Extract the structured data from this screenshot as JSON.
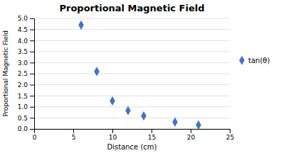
{
  "chart_data": {
    "type": "scatter",
    "title": "Proportional Magnetic Field",
    "xlabel": "Distance (cm)",
    "ylabel": "Proportional Magnetic Field",
    "x": [
      6,
      8,
      10,
      12,
      14,
      18,
      21
    ],
    "series": [
      {
        "name": "tan(θ)",
        "color": "#4472C4",
        "marker": "diamond",
        "values": [
          4.7,
          2.6,
          1.27,
          0.83,
          0.59,
          0.31,
          0.18
        ]
      }
    ],
    "xlim": [
      0,
      25
    ],
    "ylim": [
      0,
      5
    ],
    "xticks": [
      0,
      5,
      10,
      15,
      20,
      25
    ],
    "yticks": [
      {
        "value": 0,
        "label": "0.0"
      },
      0.5,
      {
        "value": 1.0,
        "label": "1.0"
      },
      1.5,
      {
        "value": 2.0,
        "label": "2.0"
      },
      2.5,
      {
        "value": 3.0,
        "label": "3.0"
      },
      3.5,
      {
        "value": 4.0,
        "label": "4.0"
      },
      4.5,
      {
        "value": 5.0,
        "label": "5.0"
      }
    ],
    "grid": "y",
    "legend": "right"
  }
}
